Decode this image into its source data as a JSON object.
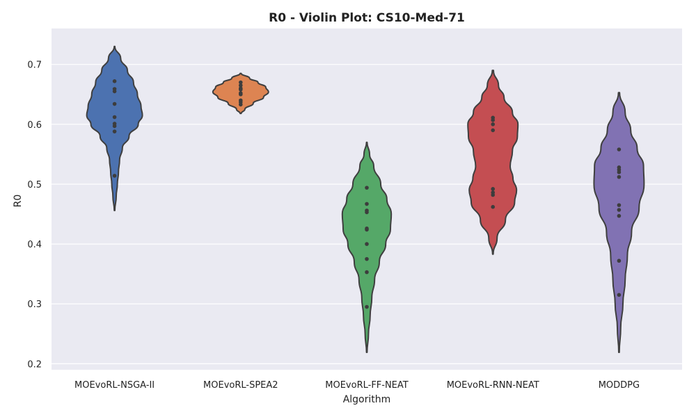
{
  "chart_data": {
    "type": "violin",
    "title": "R0 - Violin Plot: CS10-Med-71",
    "xlabel": "Algorithm",
    "ylabel": "R0",
    "ylim": [
      0.19,
      0.76
    ],
    "yticks": [
      "0.2",
      "0.3",
      "0.4",
      "0.5",
      "0.6",
      "0.7"
    ],
    "grid": true,
    "categories": [
      "MOEvoRL-NSGA-II",
      "MOEvoRL-SPEA2",
      "MOEvoRL-FF-NEAT",
      "MOEvoRL-RNN-NEAT",
      "MODDPG"
    ],
    "colors": [
      "#4c72b0",
      "#dd8452",
      "#55a868",
      "#c44e52",
      "#8172b3"
    ],
    "series": [
      {
        "values": [
          0.672,
          0.659,
          0.655,
          0.634,
          0.612,
          0.601,
          0.597,
          0.588,
          0.514
        ],
        "range": [
          0.456,
          0.73
        ],
        "profile": [
          [
            0.456,
            0.01
          ],
          [
            0.48,
            0.06
          ],
          [
            0.5,
            0.1
          ],
          [
            0.52,
            0.14
          ],
          [
            0.54,
            0.18
          ],
          [
            0.56,
            0.28
          ],
          [
            0.58,
            0.52
          ],
          [
            0.6,
            0.85
          ],
          [
            0.615,
            1.0
          ],
          [
            0.63,
            0.95
          ],
          [
            0.65,
            0.82
          ],
          [
            0.67,
            0.68
          ],
          [
            0.69,
            0.46
          ],
          [
            0.71,
            0.22
          ],
          [
            0.73,
            0.01
          ]
        ]
      },
      {
        "values": [
          0.67,
          0.665,
          0.66,
          0.658,
          0.652,
          0.65,
          0.64,
          0.637,
          0.633
        ],
        "range": [
          0.618,
          0.685
        ],
        "profile": [
          [
            0.618,
            0.02
          ],
          [
            0.625,
            0.15
          ],
          [
            0.635,
            0.45
          ],
          [
            0.645,
            0.82
          ],
          [
            0.654,
            1.0
          ],
          [
            0.662,
            0.9
          ],
          [
            0.67,
            0.62
          ],
          [
            0.677,
            0.32
          ],
          [
            0.685,
            0.02
          ]
        ]
      },
      {
        "values": [
          0.494,
          0.467,
          0.456,
          0.453,
          0.426,
          0.424,
          0.4,
          0.375,
          0.353,
          0.295
        ],
        "range": [
          0.219,
          0.57
        ],
        "profile": [
          [
            0.219,
            0.01
          ],
          [
            0.25,
            0.06
          ],
          [
            0.28,
            0.12
          ],
          [
            0.31,
            0.18
          ],
          [
            0.34,
            0.28
          ],
          [
            0.37,
            0.45
          ],
          [
            0.4,
            0.68
          ],
          [
            0.425,
            0.85
          ],
          [
            0.45,
            0.88
          ],
          [
            0.475,
            0.72
          ],
          [
            0.5,
            0.5
          ],
          [
            0.53,
            0.25
          ],
          [
            0.55,
            0.1
          ],
          [
            0.57,
            0.01
          ]
        ]
      },
      {
        "values": [
          0.611,
          0.607,
          0.6,
          0.59,
          0.492,
          0.486,
          0.482,
          0.462
        ],
        "range": [
          0.383,
          0.69
        ],
        "profile": [
          [
            0.383,
            0.01
          ],
          [
            0.41,
            0.15
          ],
          [
            0.44,
            0.45
          ],
          [
            0.47,
            0.78
          ],
          [
            0.49,
            0.85
          ],
          [
            0.51,
            0.72
          ],
          [
            0.53,
            0.62
          ],
          [
            0.555,
            0.7
          ],
          [
            0.58,
            0.88
          ],
          [
            0.6,
            0.9
          ],
          [
            0.62,
            0.7
          ],
          [
            0.645,
            0.4
          ],
          [
            0.665,
            0.2
          ],
          [
            0.69,
            0.02
          ]
        ]
      },
      {
        "values": [
          0.558,
          0.528,
          0.524,
          0.52,
          0.512,
          0.465,
          0.457,
          0.447,
          0.372,
          0.315
        ],
        "range": [
          0.219,
          0.653
        ],
        "profile": [
          [
            0.219,
            0.01
          ],
          [
            0.26,
            0.06
          ],
          [
            0.3,
            0.14
          ],
          [
            0.34,
            0.22
          ],
          [
            0.38,
            0.3
          ],
          [
            0.42,
            0.45
          ],
          [
            0.46,
            0.72
          ],
          [
            0.5,
            0.9
          ],
          [
            0.53,
            0.88
          ],
          [
            0.56,
            0.65
          ],
          [
            0.59,
            0.42
          ],
          [
            0.62,
            0.22
          ],
          [
            0.653,
            0.02
          ]
        ]
      }
    ]
  }
}
